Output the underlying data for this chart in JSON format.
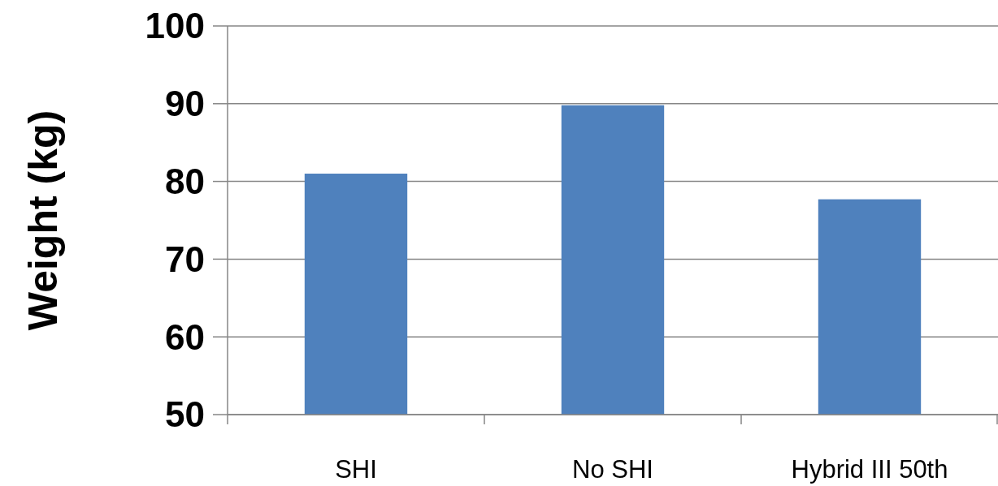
{
  "chart_data": {
    "type": "bar",
    "ylabel": "Weight (kg)",
    "categories": [
      "SHI",
      "No SHI",
      "Hybrid III 50th"
    ],
    "values": [
      81.0,
      89.8,
      77.7
    ],
    "color": "#4f81bd",
    "ylim": [
      50,
      100
    ],
    "yticks": [
      50,
      60,
      70,
      80,
      90,
      100
    ],
    "grid": "y"
  }
}
